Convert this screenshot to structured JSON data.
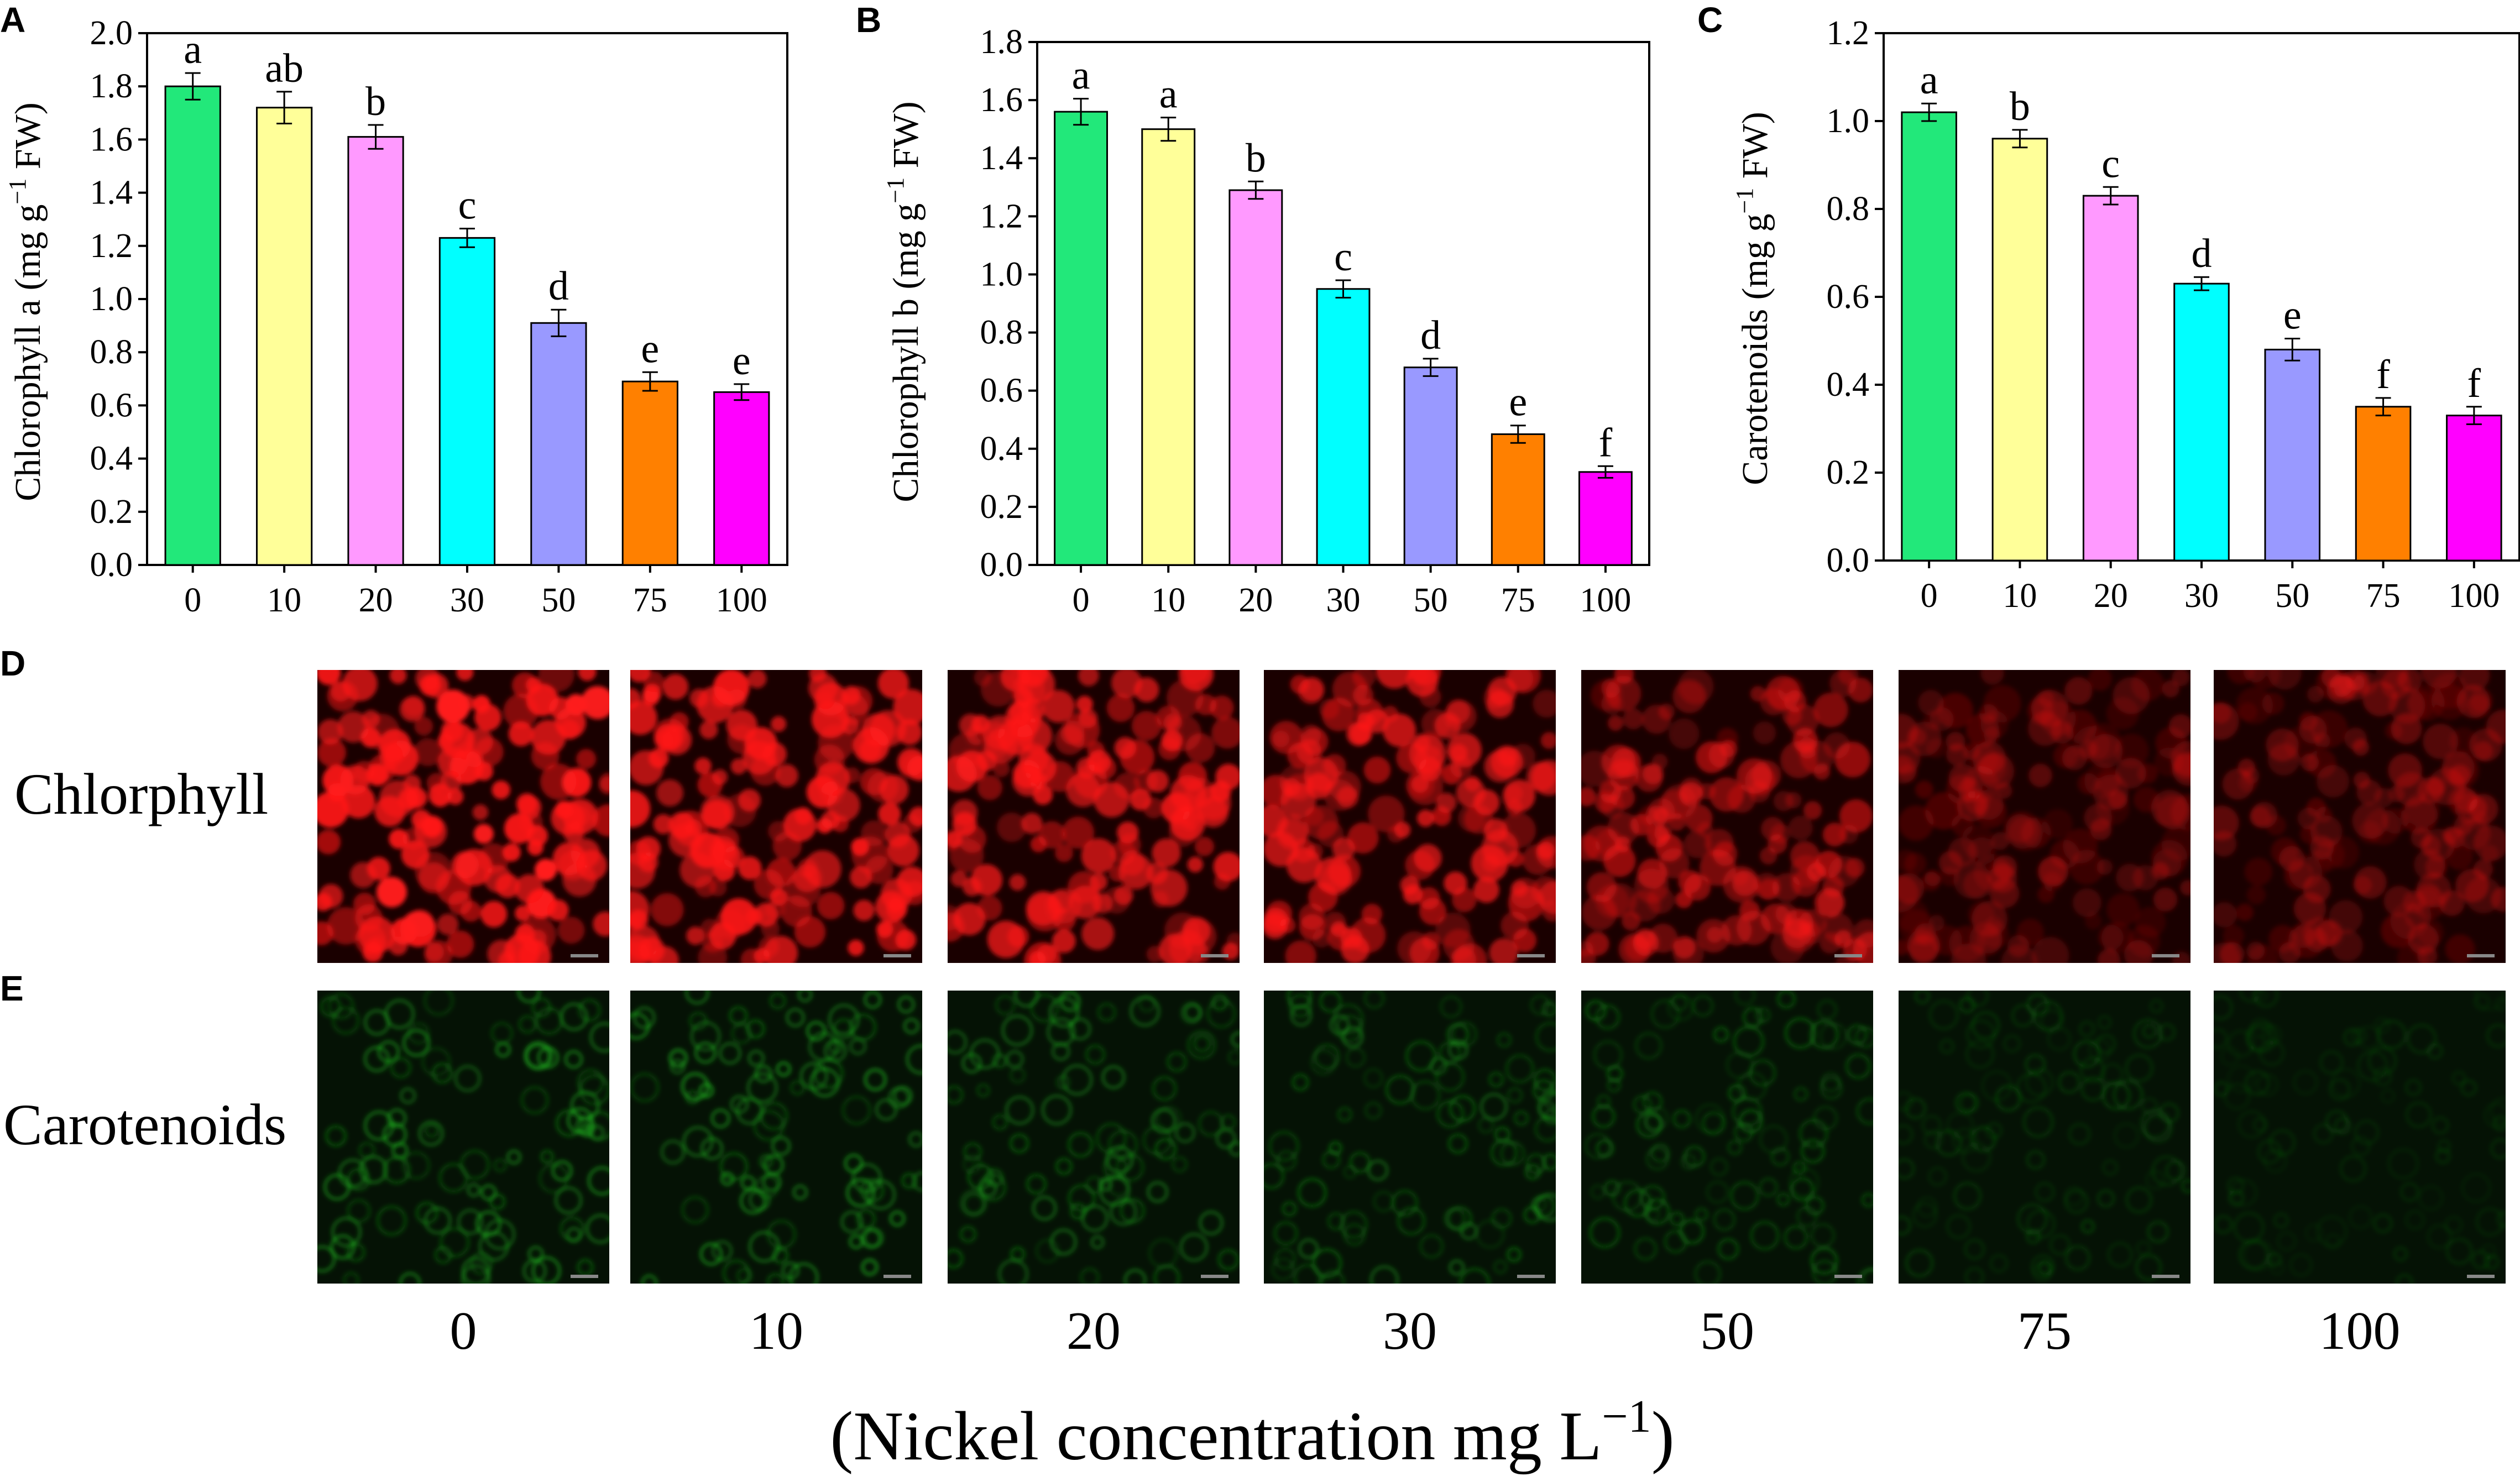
{
  "colors": {
    "bars": [
      "#22e87a",
      "#ffff99",
      "#ff99ff",
      "#00ffff",
      "#9999ff",
      "#ff8000",
      "#ff00ff"
    ],
    "chlorophyll_tint": "#ff1a1a",
    "carotenoid_tint": "#22cc22",
    "axis": "#000000"
  },
  "chart_data": [
    {
      "panel": "A",
      "type": "bar",
      "categories": [
        "0",
        "10",
        "20",
        "30",
        "50",
        "75",
        "100"
      ],
      "values": [
        1.8,
        1.72,
        1.61,
        1.23,
        0.91,
        0.69,
        0.65
      ],
      "errors": [
        0.05,
        0.06,
        0.045,
        0.035,
        0.05,
        0.035,
        0.03
      ],
      "significance": [
        "a",
        "ab",
        "b",
        "c",
        "d",
        "e",
        "e"
      ],
      "ylabel_main": "Chlorophyll a (mg g",
      "ylabel_sup": "−1",
      "ylabel_end": " FW)",
      "ylim": [
        0,
        2.0
      ],
      "yticks": [
        "0.0",
        "0.2",
        "0.4",
        "0.6",
        "0.8",
        "1.0",
        "1.2",
        "1.4",
        "1.6",
        "1.8",
        "2.0"
      ]
    },
    {
      "panel": "B",
      "type": "bar",
      "categories": [
        "0",
        "10",
        "20",
        "30",
        "50",
        "75",
        "100"
      ],
      "values": [
        1.56,
        1.5,
        1.29,
        0.95,
        0.68,
        0.45,
        0.32
      ],
      "errors": [
        0.045,
        0.04,
        0.03,
        0.03,
        0.03,
        0.03,
        0.02
      ],
      "significance": [
        "a",
        "a",
        "b",
        "c",
        "d",
        "e",
        "f"
      ],
      "ylabel_main": "Chlorophyll b (mg g",
      "ylabel_sup": "−1",
      "ylabel_end": " FW)",
      "ylim": [
        0,
        1.8
      ],
      "yticks": [
        "0.0",
        "0.2",
        "0.4",
        "0.6",
        "0.8",
        "1.0",
        "1.2",
        "1.4",
        "1.6",
        "1.8"
      ]
    },
    {
      "panel": "C",
      "type": "bar",
      "categories": [
        "0",
        "10",
        "20",
        "30",
        "50",
        "75",
        "100"
      ],
      "values": [
        1.02,
        0.96,
        0.83,
        0.63,
        0.48,
        0.35,
        0.33
      ],
      "errors": [
        0.02,
        0.02,
        0.02,
        0.015,
        0.025,
        0.02,
        0.02
      ],
      "significance": [
        "a",
        "b",
        "c",
        "d",
        "e",
        "f",
        "f"
      ],
      "ylabel_main": "Carotenoids (mg g",
      "ylabel_sup": "−1",
      "ylabel_end": " FW)",
      "ylim": [
        0,
        1.2
      ],
      "yticks": [
        "0.0",
        "0.2",
        "0.4",
        "0.6",
        "0.8",
        "1.0",
        "1.2"
      ]
    }
  ],
  "micrographs": {
    "panel_d_letter": "D",
    "panel_e_letter": "E",
    "row_d_label": "Chlorphyll",
    "row_e_label": "Carotenoids",
    "chlorophyll_intensity": [
      1.0,
      0.92,
      0.8,
      0.72,
      0.55,
      0.28,
      0.3
    ],
    "carotenoid_intensity": [
      0.55,
      0.62,
      0.45,
      0.4,
      0.35,
      0.22,
      0.15
    ],
    "concentrations": [
      "0",
      "10",
      "20",
      "30",
      "50",
      "75",
      "100"
    ]
  },
  "footer": {
    "main": "(Nickel concentration mg L",
    "sup": "−1",
    "end": ")"
  }
}
